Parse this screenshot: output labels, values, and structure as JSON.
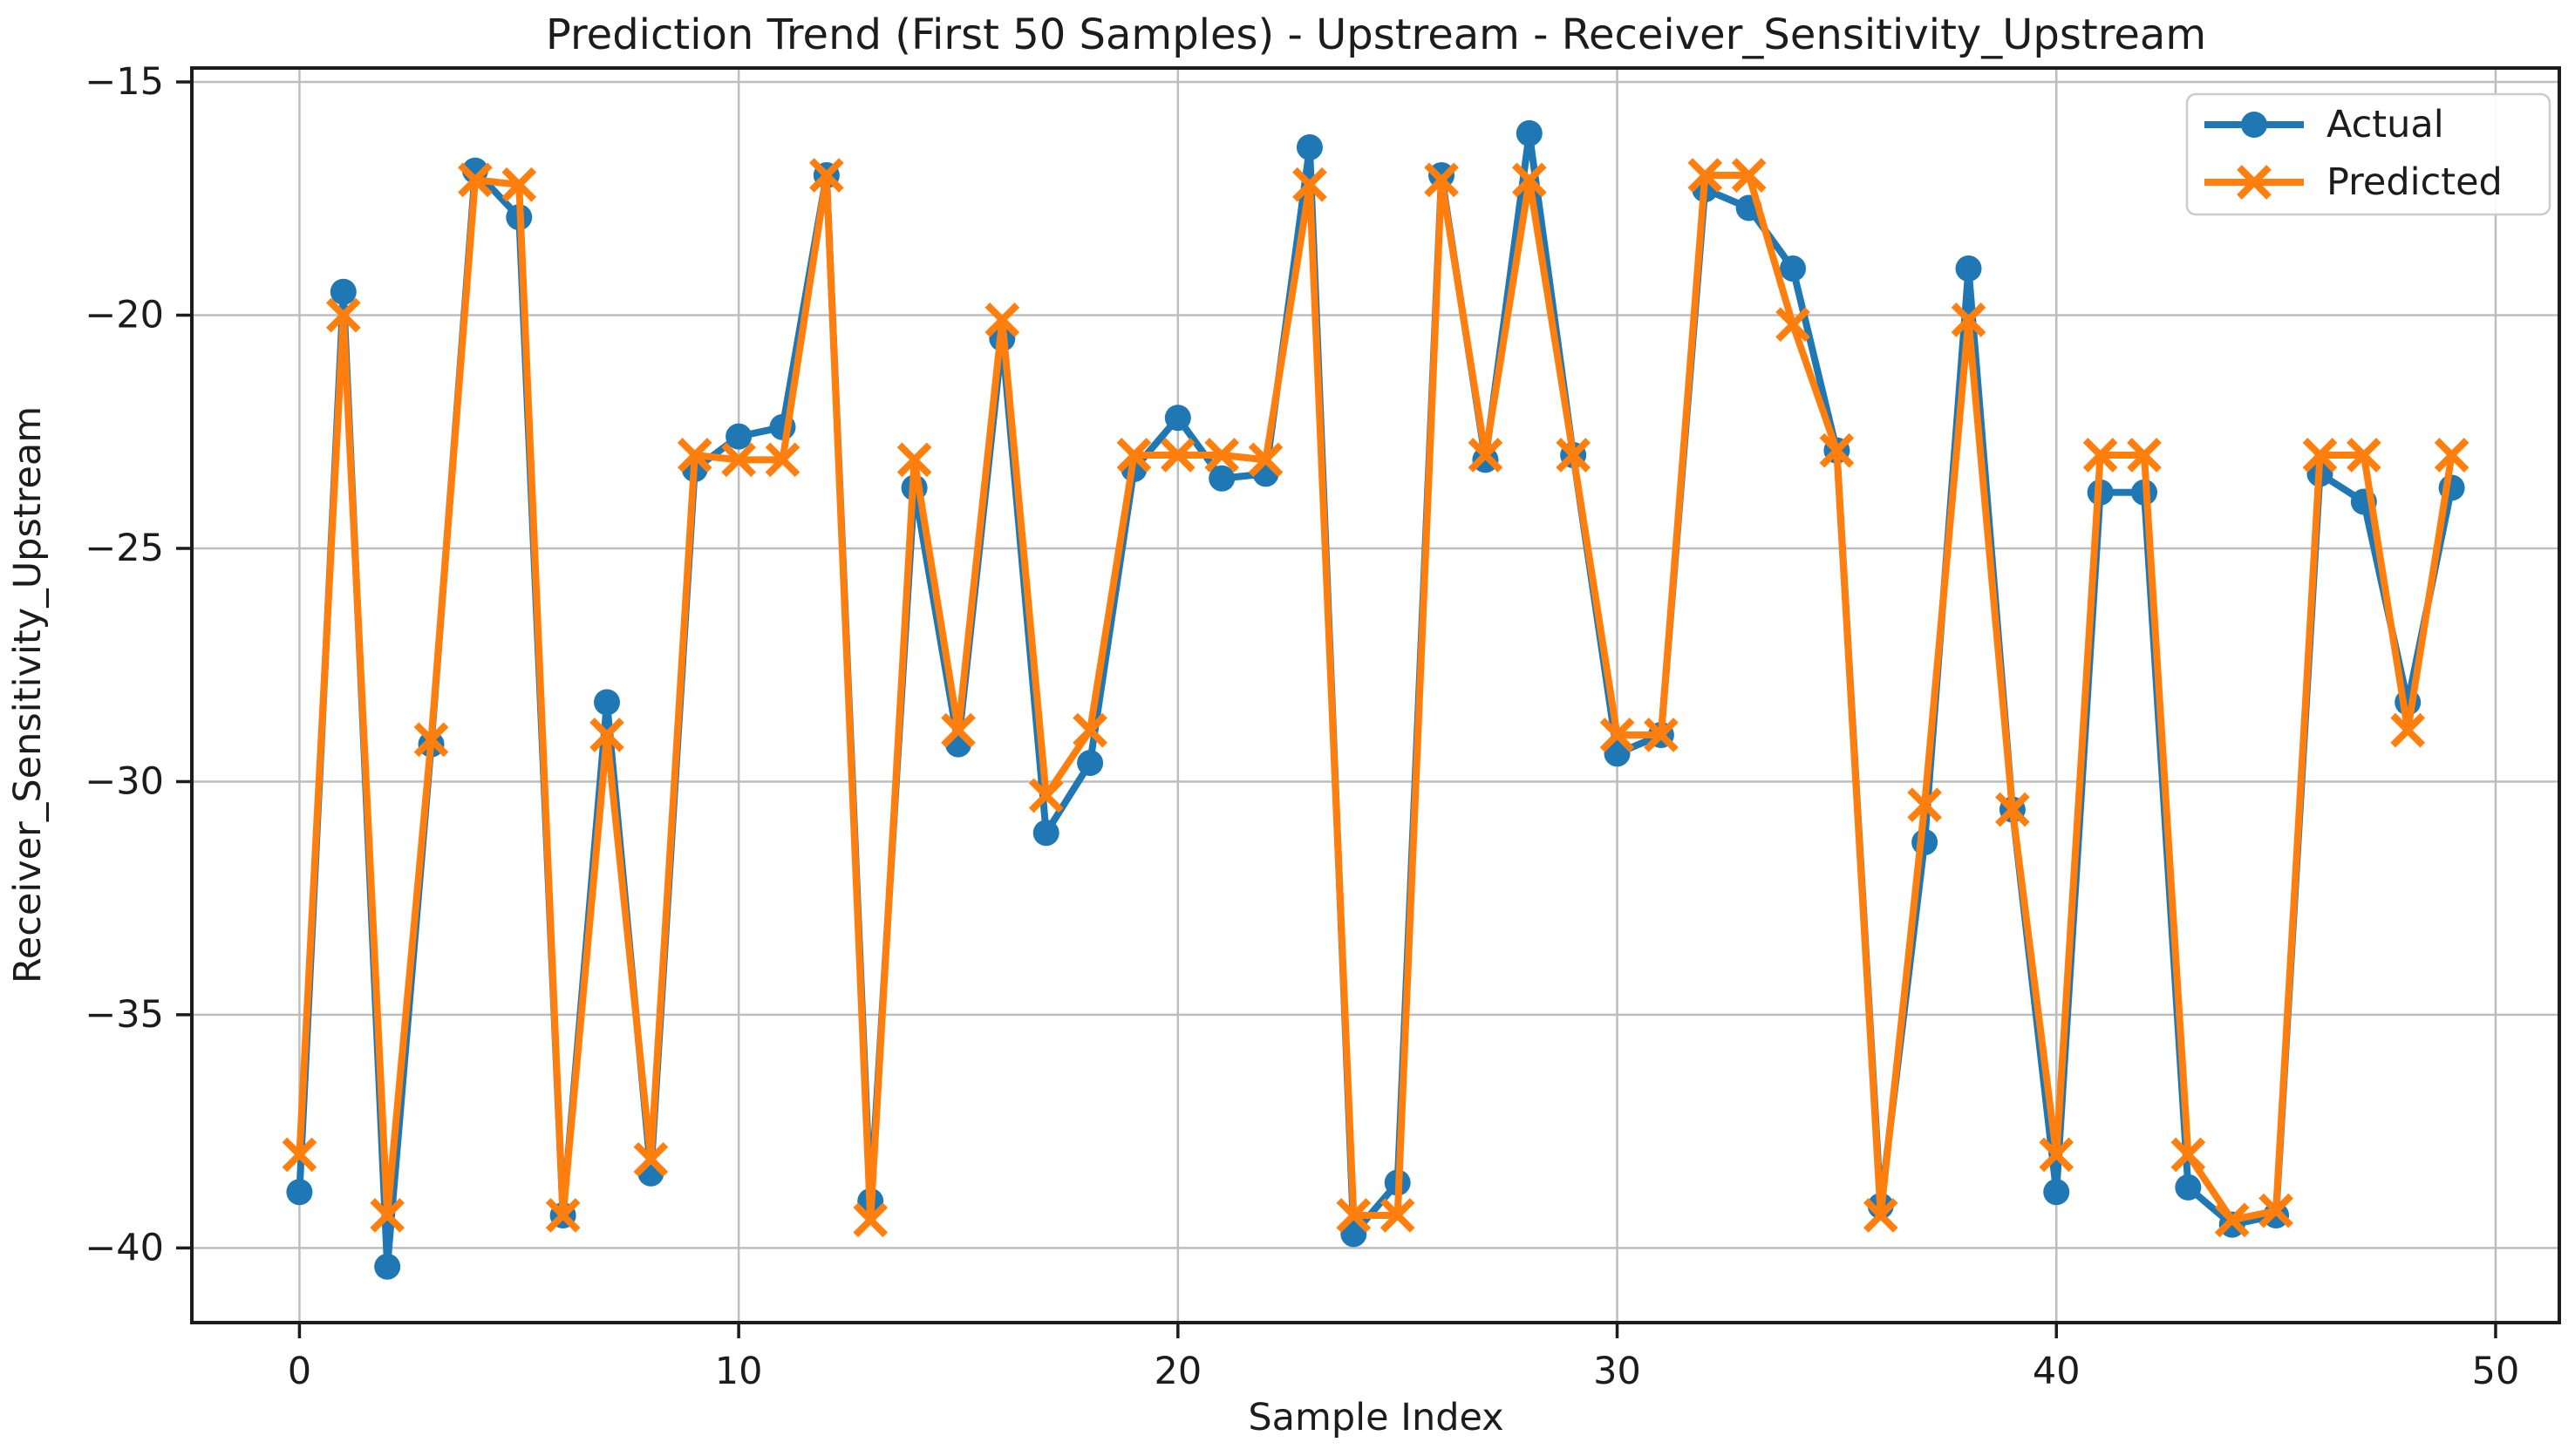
{
  "figure": {
    "background": "#ffffff",
    "text_color": "#1c1c1c",
    "grid_color": "#bdbdbd"
  },
  "chart_data": {
    "type": "line",
    "title": "Prediction Trend (First 50 Samples) - Upstream - Receiver_Sensitivity_Upstream",
    "xlabel": "Sample Index",
    "ylabel": "Receiver_Sensitivity_Upstream",
    "grid": true,
    "legend": {
      "position": "upper right",
      "entries": [
        "Actual",
        "Predicted"
      ]
    },
    "xlim": [
      -2.45,
      51.45
    ],
    "ylim": [
      -41.6,
      -14.7
    ],
    "xticks": [
      0,
      10,
      20,
      30,
      40,
      50
    ],
    "yticks": [
      -15,
      -20,
      -25,
      -30,
      -35,
      -40
    ],
    "xtick_labels": [
      "0",
      "10",
      "20",
      "30",
      "40",
      "50"
    ],
    "ytick_labels": [
      "−15",
      "−20",
      "−25",
      "−30",
      "−35",
      "−40"
    ],
    "x": [
      0,
      1,
      2,
      3,
      4,
      5,
      6,
      7,
      8,
      9,
      10,
      11,
      12,
      13,
      14,
      15,
      16,
      17,
      18,
      19,
      20,
      21,
      22,
      23,
      24,
      25,
      26,
      27,
      28,
      29,
      30,
      31,
      32,
      33,
      34,
      35,
      36,
      37,
      38,
      39,
      40,
      41,
      42,
      43,
      44,
      45,
      46,
      47,
      48,
      49
    ],
    "series": [
      {
        "name": "Actual",
        "color": "#1f77b4",
        "marker": "circle",
        "values": [
          -38.8,
          -19.5,
          -40.4,
          -29.2,
          -16.9,
          -17.9,
          -39.3,
          -28.3,
          -38.4,
          -23.3,
          -22.6,
          -22.4,
          -17.0,
          -39.0,
          -23.7,
          -29.2,
          -20.5,
          -31.1,
          -29.6,
          -23.3,
          -22.2,
          -23.5,
          -23.4,
          -16.4,
          -39.7,
          -38.6,
          -17.0,
          -23.1,
          -16.1,
          -23.0,
          -29.4,
          -29.0,
          -17.3,
          -17.7,
          -19.0,
          -22.9,
          -39.1,
          -31.3,
          -19.0,
          -30.6,
          -38.8,
          -23.8,
          -23.8,
          -38.7,
          -39.5,
          -39.3,
          -23.4,
          -24.0,
          -28.3,
          -23.7
        ]
      },
      {
        "name": "Predicted",
        "color": "#ff7f0e",
        "marker": "x",
        "values": [
          -38.0,
          -20.0,
          -39.3,
          -29.1,
          -17.1,
          -17.2,
          -39.3,
          -29.0,
          -38.1,
          -23.0,
          -23.1,
          -23.1,
          -17.0,
          -39.4,
          -23.1,
          -28.9,
          -20.1,
          -30.3,
          -28.9,
          -23.0,
          -23.0,
          -23.0,
          -23.1,
          -17.2,
          -39.3,
          -39.3,
          -17.1,
          -23.0,
          -17.1,
          -23.0,
          -29.0,
          -29.0,
          -17.0,
          -17.0,
          -20.2,
          -22.9,
          -39.3,
          -30.5,
          -20.1,
          -30.6,
          -38.0,
          -23.0,
          -23.0,
          -38.0,
          -39.4,
          -39.2,
          -23.0,
          -23.0,
          -28.9,
          -23.0
        ]
      }
    ]
  }
}
